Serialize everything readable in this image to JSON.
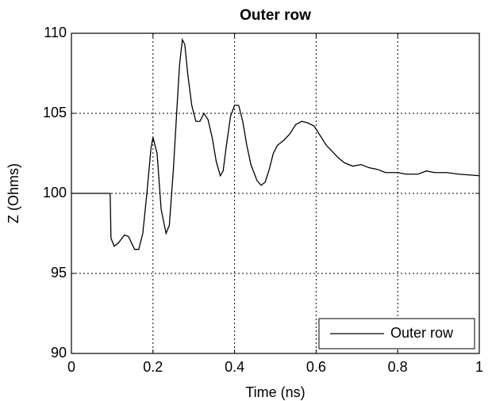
{
  "chart_data": {
    "type": "line",
    "title": "Outer row",
    "xlabel": "Time (ns)",
    "ylabel": "Z (Ohms)",
    "xlim": [
      0,
      1
    ],
    "ylim": [
      90,
      110
    ],
    "xticks": [
      0,
      0.2,
      0.4,
      0.6,
      0.8,
      1
    ],
    "yticks": [
      90,
      95,
      100,
      105,
      110
    ],
    "grid": true,
    "legend": "lower right",
    "x": [
      0,
      0.095,
      0.097,
      0.105,
      0.115,
      0.13,
      0.14,
      0.155,
      0.165,
      0.175,
      0.185,
      0.195,
      0.2,
      0.21,
      0.22,
      0.232,
      0.24,
      0.25,
      0.258,
      0.265,
      0.272,
      0.278,
      0.285,
      0.295,
      0.305,
      0.315,
      0.325,
      0.335,
      0.345,
      0.355,
      0.365,
      0.372,
      0.38,
      0.39,
      0.4,
      0.41,
      0.42,
      0.43,
      0.44,
      0.455,
      0.465,
      0.475,
      0.485,
      0.495,
      0.505,
      0.52,
      0.535,
      0.55,
      0.565,
      0.58,
      0.595,
      0.61,
      0.625,
      0.64,
      0.655,
      0.67,
      0.69,
      0.71,
      0.73,
      0.75,
      0.77,
      0.8,
      0.82,
      0.85,
      0.87,
      0.89,
      0.92,
      0.95,
      1.0
    ],
    "series": [
      {
        "name": "Outer row",
        "color": "#000000",
        "values": [
          100,
          100,
          97.2,
          96.7,
          96.9,
          97.4,
          97.3,
          96.5,
          96.5,
          97.5,
          100,
          102.8,
          103.5,
          102.5,
          99,
          97.5,
          98,
          101.5,
          105,
          108,
          109.6,
          109.3,
          107.5,
          105.5,
          104.5,
          104.5,
          105,
          104.6,
          103.5,
          102,
          101.1,
          101.4,
          103,
          104.8,
          105.5,
          105.5,
          104.5,
          103,
          101.8,
          100.8,
          100.5,
          100.7,
          101.5,
          102.5,
          103,
          103.3,
          103.7,
          104.3,
          104.5,
          104.4,
          104.2,
          103.6,
          103,
          102.6,
          102.2,
          101.9,
          101.7,
          101.8,
          101.6,
          101.5,
          101.3,
          101.3,
          101.2,
          101.2,
          101.4,
          101.3,
          101.3,
          101.2,
          101.1
        ]
      }
    ]
  }
}
